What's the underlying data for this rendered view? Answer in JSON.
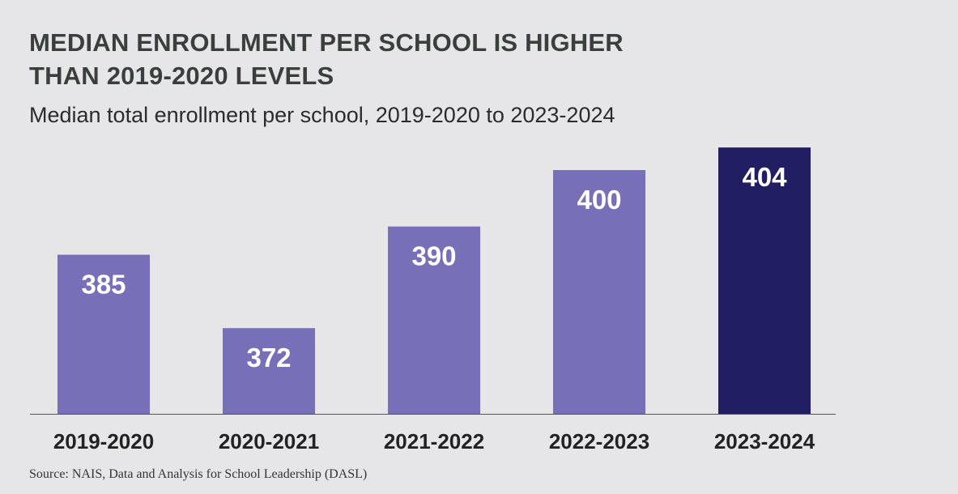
{
  "title_lines": [
    "MEDIAN ENROLLMENT PER SCHOOL IS HIGHER",
    "THAN 2019-2020 LEVELS"
  ],
  "subtitle": "Median total enrollment per school, 2019-2020 to 2023-2024",
  "source": "Source: NAIS, Data and Analysis for School Leadership (DASL)",
  "colors": {
    "bar": "#7770b8",
    "bar_highlight": "#211e63",
    "bar_label": "#ffffff",
    "axis": "#555555",
    "tick_label": "#222222",
    "title": "#3a3f3c"
  },
  "chart_data": {
    "type": "bar",
    "categories": [
      "2019-2020",
      "2020-2021",
      "2021-2022",
      "2022-2023",
      "2023-2024"
    ],
    "values": [
      385,
      372,
      390,
      400,
      404
    ],
    "data_labels": [
      "385",
      "372",
      "390",
      "400",
      "404"
    ],
    "highlight_index": 4,
    "title": "MEDIAN ENROLLMENT PER SCHOOL IS HIGHER THAN 2019-2020 LEVELS",
    "subtitle": "Median total enrollment per school, 2019-2020 to 2023-2024",
    "xlabel": "",
    "ylabel": "",
    "grid": false,
    "legend": "none"
  }
}
